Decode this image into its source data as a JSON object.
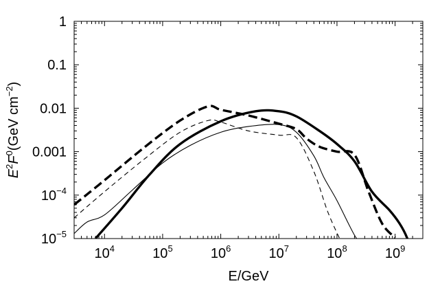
{
  "chart_data": {
    "type": "line",
    "title": "",
    "xlabel": "E/GeV",
    "ylabel": {
      "base": "E",
      "exp1": "2",
      "mid": "F",
      "exp2": "0",
      "units_open": "(GeV cm",
      "units_exp": "−2",
      "units_close": ")"
    },
    "x_scale": "log",
    "y_scale": "log",
    "xlim": [
      3000,
      3000000000
    ],
    "ylim": [
      1e-05,
      1
    ],
    "x_ticks": [
      {
        "value": 10000,
        "base": "10",
        "exp": "4"
      },
      {
        "value": 100000,
        "base": "10",
        "exp": "5"
      },
      {
        "value": 1000000,
        "base": "10",
        "exp": "6"
      },
      {
        "value": 10000000,
        "base": "10",
        "exp": "7"
      },
      {
        "value": 100000000,
        "base": "10",
        "exp": "8"
      },
      {
        "value": 1000000000,
        "base": "10",
        "exp": "9"
      }
    ],
    "y_ticks": [
      {
        "value": 1,
        "text": "1"
      },
      {
        "value": 0.1,
        "text": "0.1"
      },
      {
        "value": 0.01,
        "text": "0.01"
      },
      {
        "value": 0.001,
        "text": "0.001"
      },
      {
        "value": 0.0001,
        "base": "10",
        "exp": "−4"
      },
      {
        "value": 1e-05,
        "base": "10",
        "exp": "−5"
      }
    ],
    "series": [
      {
        "name": "thick-solid",
        "style": "solid",
        "width": 3.4,
        "x": [
          7000,
          20000,
          60000,
          200000,
          1000000,
          4000000,
          10000000,
          20000000,
          50000000,
          100000000,
          200000000,
          400000000,
          800000000,
          1200000000,
          1600000000,
          2000000000
        ],
        "y": [
          1e-05,
          5e-05,
          0.0003,
          0.0015,
          0.005,
          0.0085,
          0.0085,
          0.0065,
          0.003,
          0.0015,
          0.0006,
          0.00012,
          4.5e-05,
          2.2e-05,
          1.05e-05,
          4e-06
        ]
      },
      {
        "name": "thick-dashed",
        "style": "dashed",
        "width": 3.4,
        "x": [
          3000,
          10000,
          50000,
          200000,
          600000,
          1000000,
          3000000,
          10000000,
          20000000,
          30000000,
          50000000,
          100000000,
          200000000,
          350000000,
          600000000,
          1000000000
        ],
        "y": [
          6e-05,
          0.00022,
          0.0013,
          0.0052,
          0.011,
          0.0092,
          0.0068,
          0.0044,
          0.0033,
          0.002,
          0.0013,
          0.001,
          0.00085,
          0.00012,
          2.2e-05,
          1.05e-05
        ]
      },
      {
        "name": "thin-solid",
        "style": "solid",
        "width": 1.1,
        "x": [
          3000,
          5000,
          10000,
          30000,
          100000,
          300000,
          1000000,
          3000000,
          10000000,
          20000000,
          40000000,
          60000000,
          100000000,
          200000000,
          300000000
        ],
        "y": [
          1.3e-05,
          2.4e-05,
          3.5e-05,
          0.00013,
          0.00055,
          0.0014,
          0.0028,
          0.0038,
          0.0042,
          0.0028,
          0.0008,
          0.00025,
          7.5e-05,
          1.2e-05,
          6e-06
        ]
      },
      {
        "name": "thin-dashed",
        "style": "dashed",
        "width": 1.1,
        "x": [
          3000,
          10000,
          50000,
          200000,
          600000,
          1000000,
          3000000,
          10000000,
          20000000,
          40000000,
          70000000,
          120000000
        ],
        "y": [
          3e-05,
          0.00012,
          0.0007,
          0.0028,
          0.0052,
          0.0048,
          0.003,
          0.0024,
          0.0021,
          0.00035,
          4e-05,
          8e-06
        ]
      }
    ]
  }
}
